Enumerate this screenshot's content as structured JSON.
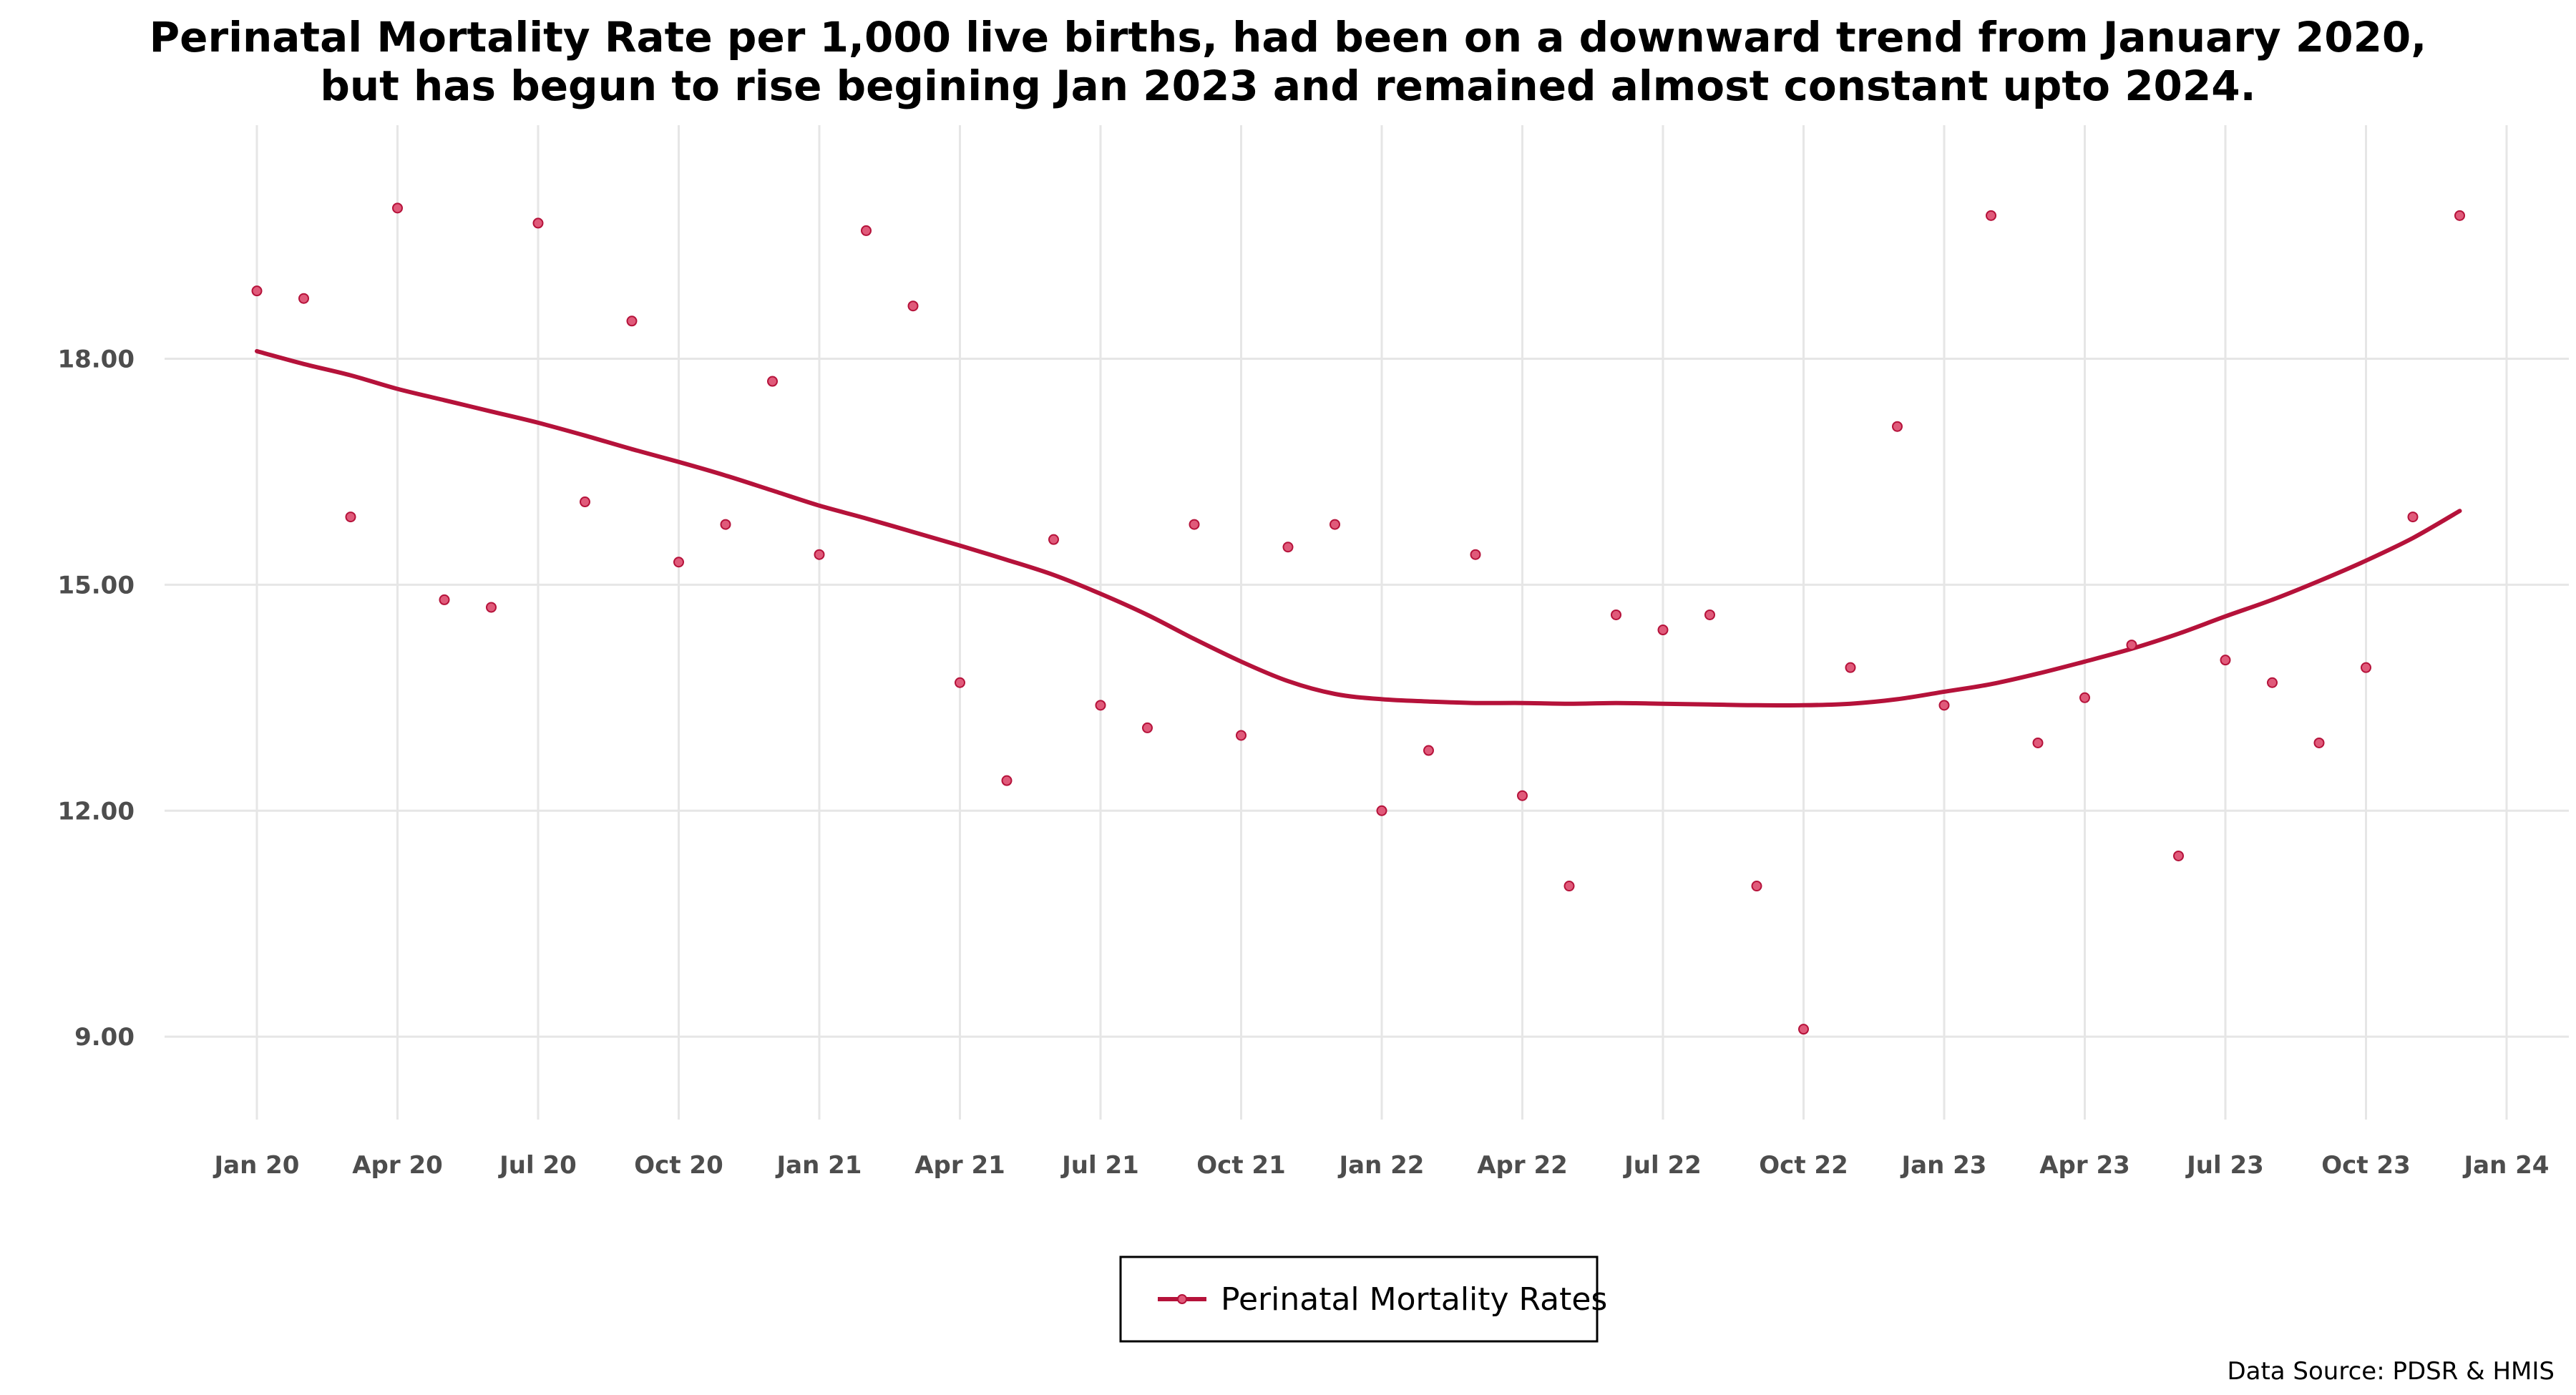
{
  "chart_data": {
    "type": "line",
    "title_lines": [
      "Perinatal Mortality Rate per 1,000 live births, had been on a downward trend from January 2020,",
      "but has begun to rise begining Jan 2023 and remained almost constant upto 2024."
    ],
    "xlabel": "",
    "ylabel": "",
    "ylim": [
      7.9,
      21.1
    ],
    "y_ticks": [
      {
        "value": 9,
        "label": "9.00"
      },
      {
        "value": 12,
        "label": "12.00"
      },
      {
        "value": 15,
        "label": "15.00"
      },
      {
        "value": 18,
        "label": "18.00"
      }
    ],
    "x_ticks": [
      "Jan 20",
      "Apr 20",
      "Jul 20",
      "Oct 20",
      "Jan 21",
      "Apr 21",
      "Jul 21",
      "Oct 21",
      "Jan 22",
      "Apr 22",
      "Jul 22",
      "Oct 22",
      "Jan 23",
      "Apr 23",
      "Jul 23",
      "Oct 23",
      "Jan 24"
    ],
    "grid": true,
    "legend_position": "bottom-center",
    "series": [
      {
        "name": "Perinatal Mortality Rates",
        "color": "#b5123a",
        "point_color": "#e05a7a",
        "x": [
          "2020-01",
          "2020-02",
          "2020-03",
          "2020-04",
          "2020-05",
          "2020-06",
          "2020-07",
          "2020-08",
          "2020-09",
          "2020-10",
          "2020-11",
          "2020-12",
          "2021-01",
          "2021-02",
          "2021-03",
          "2021-04",
          "2021-05",
          "2021-06",
          "2021-07",
          "2021-08",
          "2021-09",
          "2021-10",
          "2021-11",
          "2021-12",
          "2022-01",
          "2022-02",
          "2022-03",
          "2022-04",
          "2022-05",
          "2022-06",
          "2022-07",
          "2022-08",
          "2022-09",
          "2022-10",
          "2022-11",
          "2022-12",
          "2023-01",
          "2023-02",
          "2023-03",
          "2023-04",
          "2023-05",
          "2023-06",
          "2023-07",
          "2023-08",
          "2023-09",
          "2023-10",
          "2023-11",
          "2023-12"
        ],
        "points": [
          18.9,
          18.8,
          15.9,
          20.0,
          14.8,
          14.7,
          19.8,
          16.1,
          18.5,
          15.3,
          15.8,
          17.7,
          15.4,
          19.7,
          18.7,
          13.7,
          12.4,
          15.6,
          13.4,
          13.1,
          15.8,
          13.0,
          15.5,
          15.8,
          12.0,
          12.8,
          15.4,
          12.2,
          11.0,
          14.6,
          14.4,
          14.6,
          11.0,
          9.1,
          13.9,
          17.1,
          13.4,
          19.9,
          12.9,
          13.5,
          14.2,
          11.4,
          14.0,
          13.7,
          12.9,
          13.9,
          15.9,
          19.9
        ],
        "trend": [
          18.1,
          17.93,
          17.78,
          17.6,
          17.45,
          17.3,
          17.15,
          16.98,
          16.8,
          16.63,
          16.45,
          16.25,
          16.05,
          15.88,
          15.7,
          15.52,
          15.33,
          15.13,
          14.88,
          14.6,
          14.28,
          13.98,
          13.72,
          13.55,
          13.48,
          13.45,
          13.43,
          13.43,
          13.42,
          13.43,
          13.42,
          13.41,
          13.4,
          13.4,
          13.42,
          13.48,
          13.58,
          13.68,
          13.82,
          13.98,
          14.15,
          14.35,
          14.58,
          14.8,
          15.05,
          15.32,
          15.62,
          15.98
        ]
      }
    ],
    "source": "Data Source: PDSR & HMIS"
  }
}
